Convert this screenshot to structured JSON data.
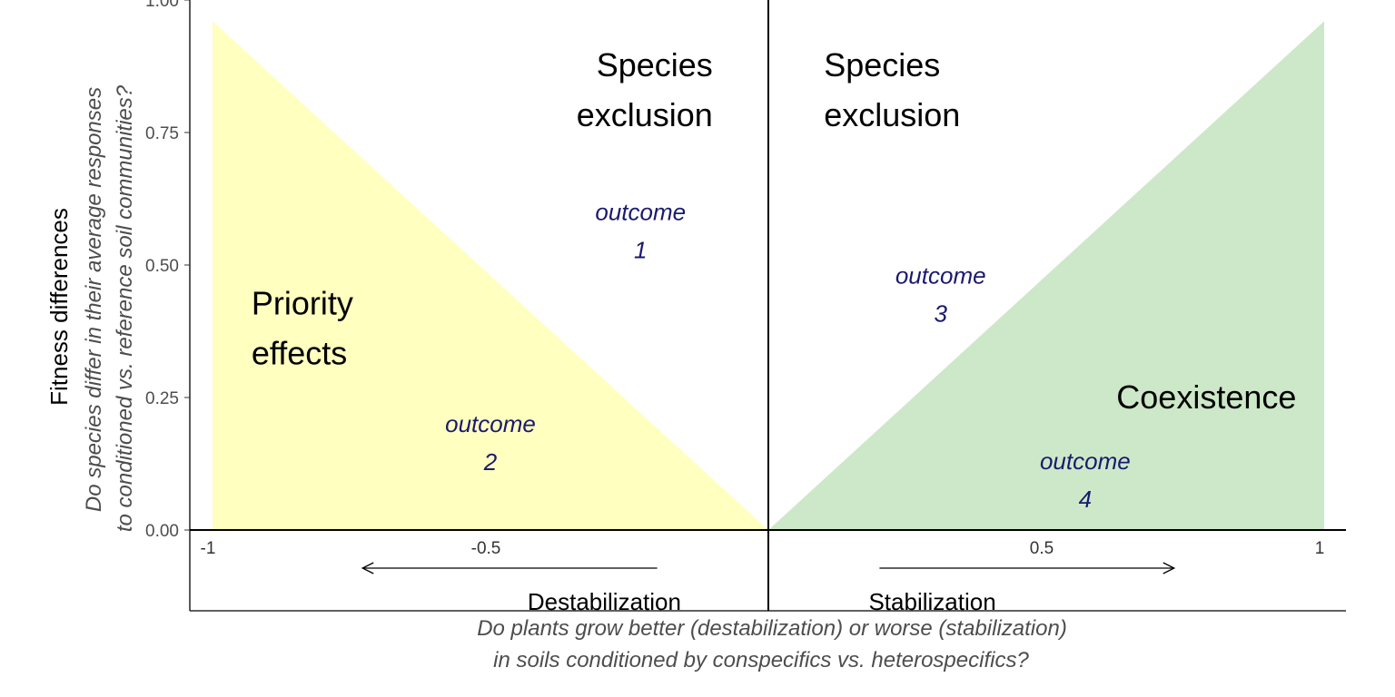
{
  "chart_data": {
    "type": "area",
    "x_range": [
      -1,
      1
    ],
    "ylim": [
      0,
      1
    ],
    "grid": false,
    "y_ticks": [
      "0.00",
      "0.25",
      "0.50",
      "0.75",
      "1.00"
    ],
    "y_tick_values": [
      0,
      0.25,
      0.5,
      0.75,
      1.0
    ],
    "x_ticks": [
      "-1",
      "-0.5",
      "0.5",
      "1"
    ],
    "x_tick_values": [
      -1,
      -0.5,
      0.5,
      1
    ],
    "ylabel": "Fitness differences",
    "ylabel_sub_line1": "Do species differ in their average responses",
    "ylabel_sub_line2": "to conditioned vs. reference soil communities?",
    "xlabel_sub_line1": "Do plants grow better (destabilization) or worse (stabilization)",
    "xlabel_sub_line2": "in soils conditioned by conspecifics vs. heterospecifics?",
    "regions": [
      {
        "name": "priority",
        "color": "#ffffbf",
        "points": [
          [
            -1,
            0
          ],
          [
            -1,
            0.96
          ],
          [
            0,
            0
          ]
        ]
      },
      {
        "name": "coexistence",
        "color": "#cde8c8",
        "points": [
          [
            0,
            0
          ],
          [
            1,
            0.96
          ],
          [
            1,
            0
          ]
        ]
      }
    ],
    "region_labels": [
      {
        "lines": [
          "Species",
          "exclusion"
        ],
        "x": -0.1,
        "y": 0.83,
        "anchor": "end"
      },
      {
        "lines": [
          "Species",
          "exclusion"
        ],
        "x": 0.1,
        "y": 0.83,
        "anchor": "start"
      },
      {
        "lines": [
          "Priority",
          "effects"
        ],
        "x": -0.93,
        "y": 0.38,
        "anchor": "start"
      },
      {
        "lines": [
          "Coexistence"
        ],
        "x": 0.95,
        "y": 0.25,
        "anchor": "end"
      }
    ],
    "outcomes": [
      {
        "label": "outcome",
        "number": "1",
        "x": -0.23,
        "y": 0.6
      },
      {
        "label": "outcome",
        "number": "2",
        "x": -0.5,
        "y": 0.2
      },
      {
        "label": "outcome",
        "number": "3",
        "x": 0.31,
        "y": 0.48
      },
      {
        "label": "outcome",
        "number": "4",
        "x": 0.57,
        "y": 0.13
      }
    ],
    "directions": [
      {
        "label": "Destabilization",
        "from": -0.2,
        "to": -0.73
      },
      {
        "label": "Stabilization",
        "from": 0.2,
        "to": 0.73
      }
    ]
  }
}
